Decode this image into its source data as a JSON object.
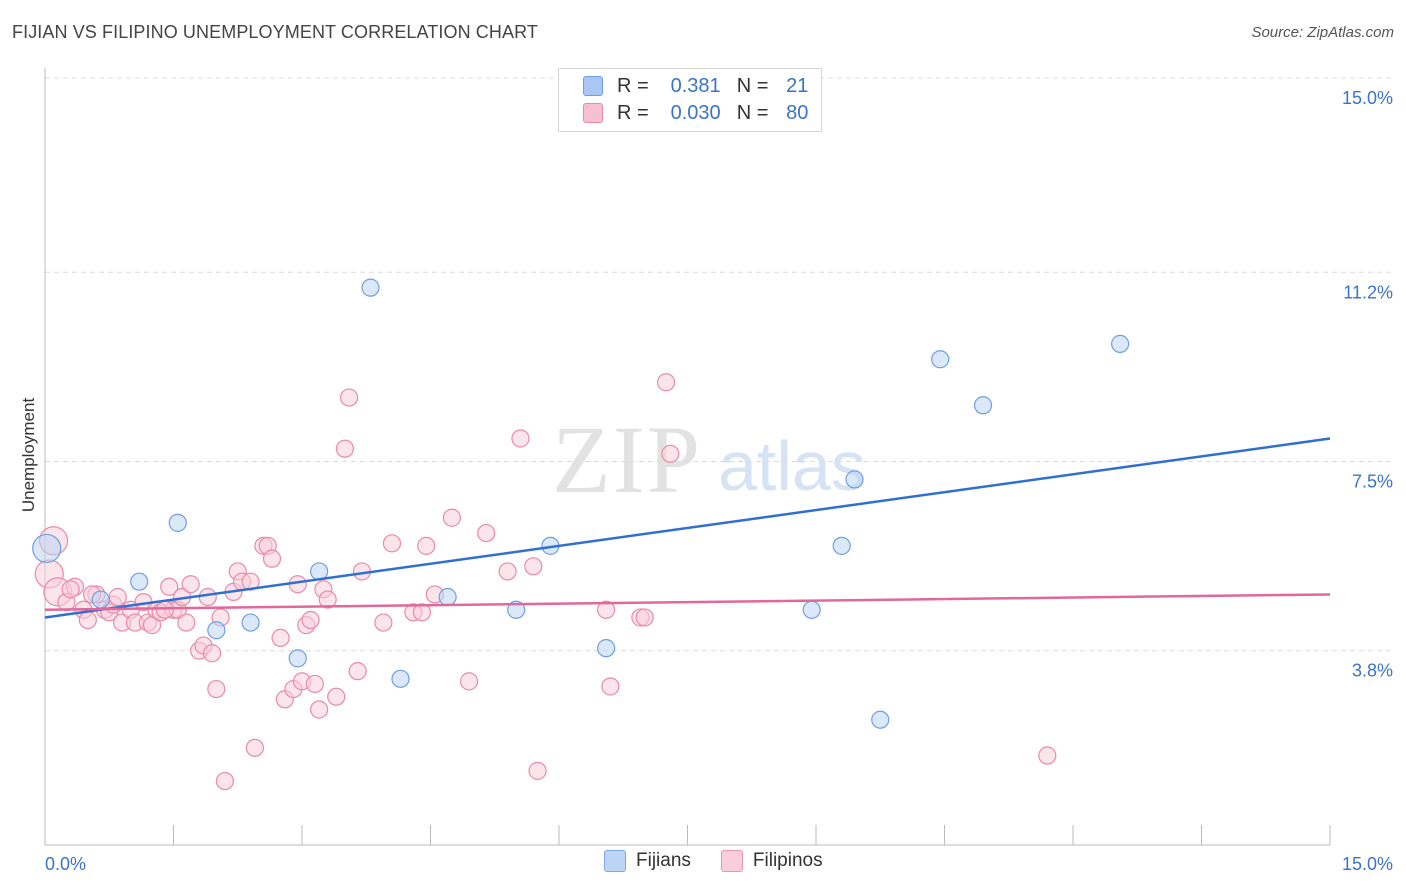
{
  "title": "FIJIAN VS FILIPINO UNEMPLOYMENT CORRELATION CHART",
  "source": "Source: ZipAtlas.com",
  "watermark": {
    "zip": "ZIP",
    "atlas": "atlas"
  },
  "legend": {
    "rows": [
      {
        "r_label": "R =",
        "r_value": "0.381",
        "n_label": "N =",
        "n_value": "21",
        "color": "#a9c7f2",
        "border": "#6f9fe0"
      },
      {
        "r_label": "R =",
        "r_value": "0.030",
        "n_label": "N =",
        "n_value": "80",
        "color": "#f7c0d1",
        "border": "#e98aa9"
      }
    ]
  },
  "bottom_legend": [
    {
      "label": "Fijians",
      "color": "#bcd5f6",
      "border": "#7ea7e3"
    },
    {
      "label": "Filipinos",
      "color": "#f9cddb",
      "border": "#e996b1"
    }
  ],
  "chart_data": {
    "type": "scatter",
    "title": "FIJIAN VS FILIPINO UNEMPLOYMENT CORRELATION CHART",
    "xlabel": "",
    "ylabel": "Unemployment",
    "xlim": [
      0,
      15
    ],
    "ylim": [
      0,
      15
    ],
    "x_tick_labels": [
      "0.0%",
      "15.0%"
    ],
    "y_ticks": [
      3.8,
      7.5,
      11.2,
      15.0
    ],
    "y_tick_labels": [
      "3.8%",
      "7.5%",
      "11.2%",
      "15.0%"
    ],
    "grid": true,
    "legend_position": "top-center",
    "series": [
      {
        "name": "Fijians",
        "color": "#6f9fe0",
        "fill": "#bcd5f6",
        "trend": {
          "x": [
            0,
            15
          ],
          "y": [
            4.45,
            7.95
          ]
        },
        "points": [
          [
            0.02,
            5.8
          ],
          [
            0.65,
            4.8
          ],
          [
            1.1,
            5.15
          ],
          [
            1.55,
            6.3
          ],
          [
            2.0,
            4.2
          ],
          [
            2.4,
            4.35
          ],
          [
            2.95,
            3.65
          ],
          [
            3.2,
            5.35
          ],
          [
            3.8,
            10.9
          ],
          [
            4.15,
            3.25
          ],
          [
            4.7,
            4.85
          ],
          [
            5.5,
            4.6
          ],
          [
            5.9,
            5.85
          ],
          [
            6.55,
            3.85
          ],
          [
            8.95,
            4.6
          ],
          [
            9.3,
            5.85
          ],
          [
            9.45,
            7.15
          ],
          [
            9.75,
            2.45
          ],
          [
            10.45,
            9.5
          ],
          [
            10.95,
            8.6
          ],
          [
            12.55,
            9.8
          ]
        ]
      },
      {
        "name": "Filipinos",
        "color": "#e98aa9",
        "fill": "#f9cddb",
        "trend": {
          "x": [
            0,
            15
          ],
          "y": [
            4.6,
            4.9
          ]
        },
        "points": [
          [
            0.1,
            5.95
          ],
          [
            0.05,
            5.3
          ],
          [
            0.15,
            4.95
          ],
          [
            0.25,
            4.75
          ],
          [
            0.35,
            5.05
          ],
          [
            0.45,
            4.6
          ],
          [
            0.5,
            4.4
          ],
          [
            0.6,
            4.9
          ],
          [
            0.7,
            4.6
          ],
          [
            0.75,
            4.55
          ],
          [
            0.8,
            4.7
          ],
          [
            0.85,
            4.85
          ],
          [
            0.9,
            4.35
          ],
          [
            1.0,
            4.6
          ],
          [
            1.05,
            4.35
          ],
          [
            1.15,
            4.75
          ],
          [
            1.2,
            4.35
          ],
          [
            1.25,
            4.3
          ],
          [
            1.3,
            4.6
          ],
          [
            1.35,
            4.55
          ],
          [
            1.45,
            5.05
          ],
          [
            1.5,
            4.6
          ],
          [
            1.55,
            4.6
          ],
          [
            1.6,
            4.85
          ],
          [
            1.65,
            4.35
          ],
          [
            1.7,
            5.1
          ],
          [
            1.8,
            3.8
          ],
          [
            1.85,
            3.9
          ],
          [
            1.9,
            4.85
          ],
          [
            1.95,
            3.75
          ],
          [
            2.0,
            3.05
          ],
          [
            2.05,
            4.45
          ],
          [
            2.1,
            1.25
          ],
          [
            2.2,
            4.95
          ],
          [
            2.25,
            5.35
          ],
          [
            2.3,
            5.15
          ],
          [
            2.4,
            5.15
          ],
          [
            2.45,
            1.9
          ],
          [
            2.55,
            5.85
          ],
          [
            2.6,
            5.85
          ],
          [
            2.65,
            5.6
          ],
          [
            2.75,
            4.05
          ],
          [
            2.8,
            2.85
          ],
          [
            2.9,
            3.05
          ],
          [
            2.95,
            5.1
          ],
          [
            3.0,
            3.2
          ],
          [
            3.05,
            4.3
          ],
          [
            3.1,
            4.4
          ],
          [
            3.15,
            3.15
          ],
          [
            3.2,
            2.65
          ],
          [
            3.25,
            5.0
          ],
          [
            3.3,
            4.8
          ],
          [
            3.4,
            2.9
          ],
          [
            3.5,
            7.75
          ],
          [
            3.55,
            8.75
          ],
          [
            3.65,
            3.4
          ],
          [
            3.7,
            5.35
          ],
          [
            3.95,
            4.35
          ],
          [
            4.05,
            5.9
          ],
          [
            4.3,
            4.55
          ],
          [
            4.4,
            4.55
          ],
          [
            4.45,
            5.85
          ],
          [
            4.55,
            4.9
          ],
          [
            4.75,
            6.4
          ],
          [
            4.95,
            3.2
          ],
          [
            5.15,
            6.1
          ],
          [
            5.4,
            5.35
          ],
          [
            5.55,
            7.95
          ],
          [
            5.7,
            5.45
          ],
          [
            5.75,
            1.45
          ],
          [
            6.55,
            4.6
          ],
          [
            6.6,
            3.1
          ],
          [
            6.95,
            4.45
          ],
          [
            7.0,
            4.45
          ],
          [
            7.25,
            9.05
          ],
          [
            7.3,
            7.65
          ],
          [
            11.7,
            1.75
          ],
          [
            0.3,
            5.0
          ],
          [
            0.55,
            4.9
          ],
          [
            1.4,
            4.6
          ]
        ]
      }
    ]
  }
}
